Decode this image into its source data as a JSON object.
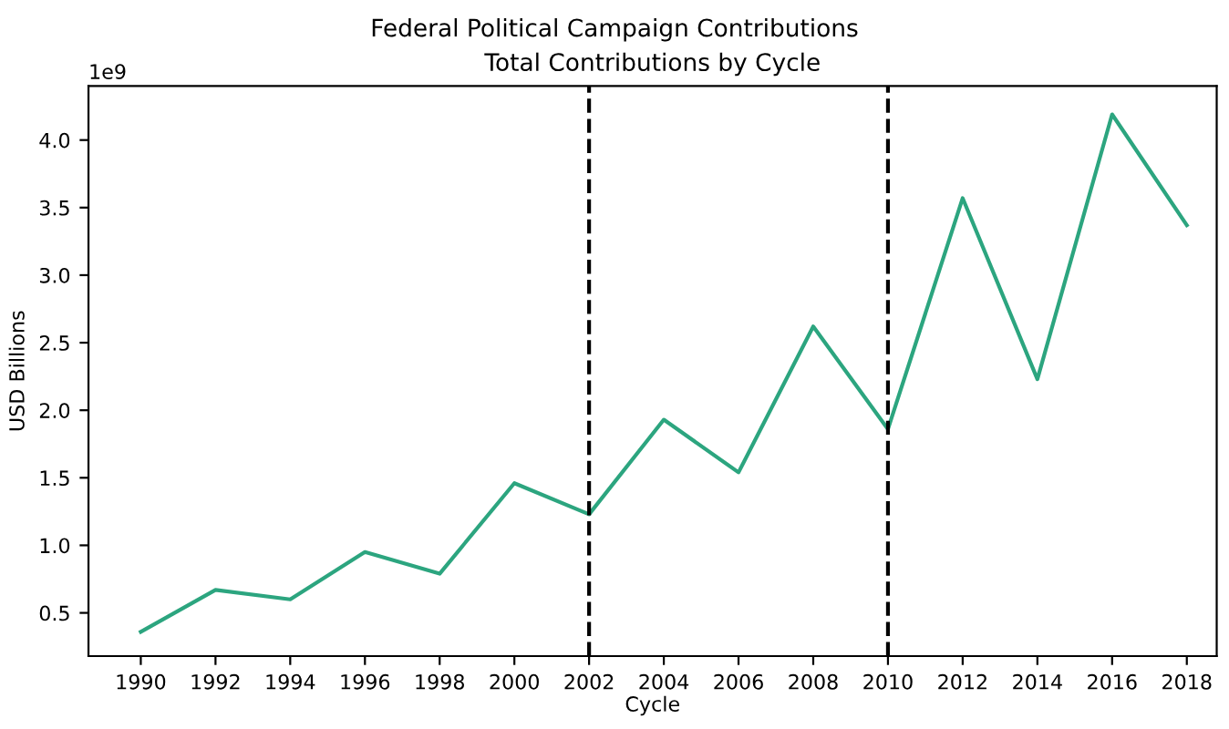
{
  "chart_data": {
    "type": "line",
    "title": "Federal Political Campaign Contributions",
    "subtitle": "Total Contributions by Cycle",
    "xlabel": "Cycle",
    "ylabel": "USD Billions",
    "x": [
      1990,
      1992,
      1994,
      1996,
      1998,
      2000,
      2002,
      2004,
      2006,
      2008,
      2010,
      2012,
      2014,
      2016,
      2018
    ],
    "series": [
      {
        "color": "#2ca57f",
        "values": [
          0.36,
          0.67,
          0.6,
          0.95,
          0.79,
          1.46,
          1.23,
          1.93,
          1.54,
          2.62,
          1.86,
          3.57,
          2.23,
          4.19,
          3.37
        ]
      }
    ],
    "xlim": [
      1988.6,
      2018.8
    ],
    "xticks": [
      1990,
      1992,
      1994,
      1996,
      1998,
      2000,
      2002,
      2004,
      2006,
      2008,
      2010,
      2012,
      2014,
      2016,
      2018
    ],
    "ylim": [
      0.18,
      4.4
    ],
    "yticks": [
      {
        "value": 0.5,
        "label": "0.5"
      },
      {
        "value": 1.0,
        "label": "1.0"
      },
      {
        "value": 1.5,
        "label": "1.5"
      },
      {
        "value": 2.0,
        "label": "2.0"
      },
      {
        "value": 2.5,
        "label": "2.5"
      },
      {
        "value": 3.0,
        "label": "3.0"
      },
      {
        "value": 3.5,
        "label": "3.5"
      },
      {
        "value": 4.0,
        "label": "4.0"
      }
    ],
    "ref_lines": [
      {
        "axis": "x",
        "value": 2002,
        "color": "#000000",
        "line_style": "dashed"
      },
      {
        "axis": "x",
        "value": 2010,
        "color": "#000000",
        "line_style": "dashed"
      }
    ],
    "annotations": [
      "1e9"
    ],
    "grid": false,
    "legend": false,
    "marker": "none",
    "line_style": "solid"
  }
}
